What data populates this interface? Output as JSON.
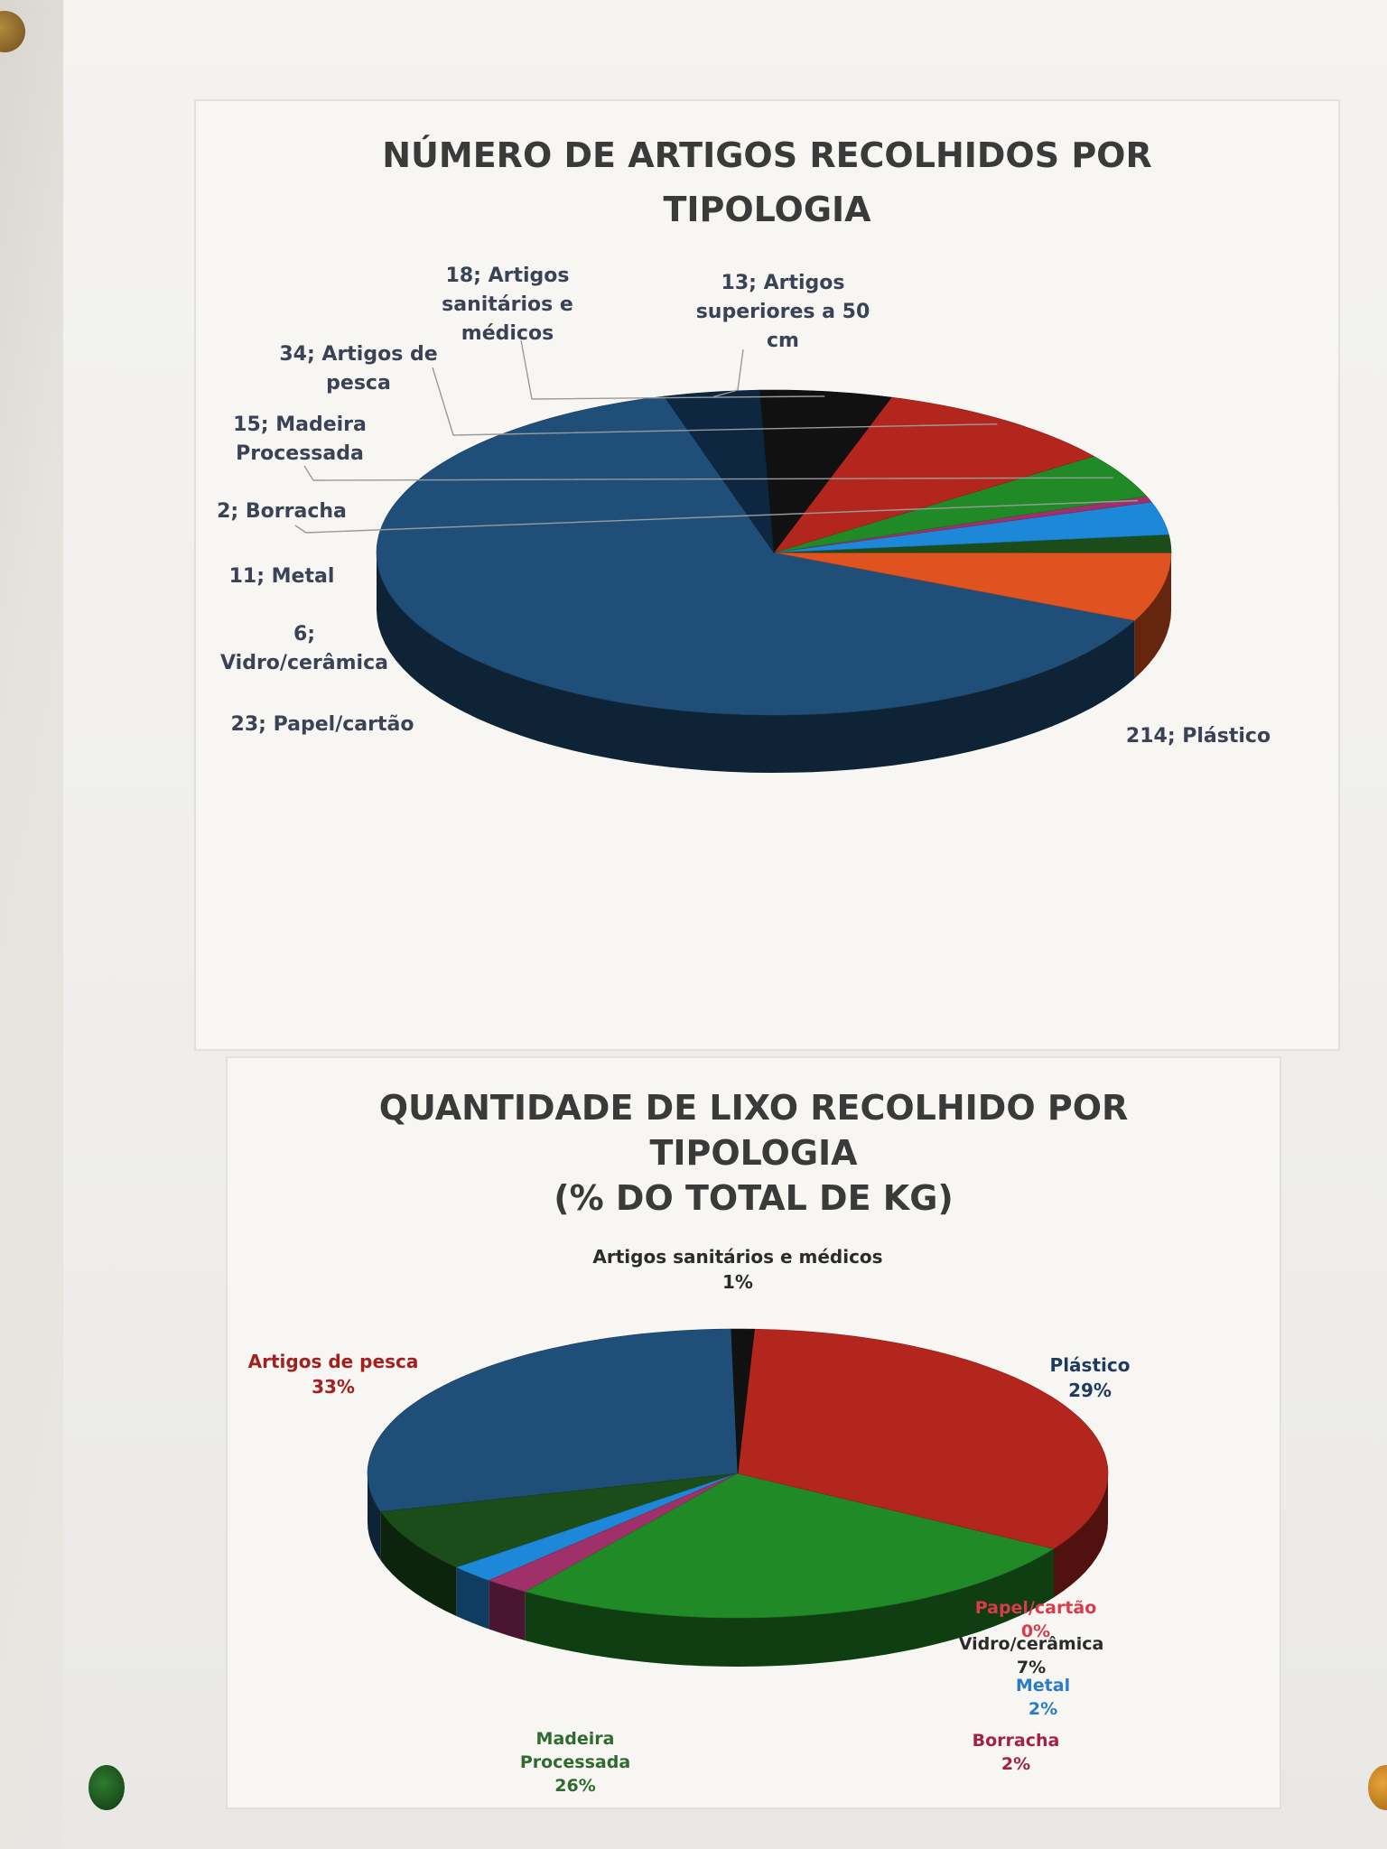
{
  "chart_data": [
    {
      "type": "pie",
      "title": "NÚMERO DE ARTIGOS RECOLHIDOS POR TIPOLOGIA",
      "data_labels": "value; category",
      "slices": [
        {
          "category": "Plástico",
          "value": 214,
          "label": "214; Plástico",
          "color": "#1f4e79"
        },
        {
          "category": "Papel/cartão",
          "value": 23,
          "label": "23; Papel/cartão",
          "color": "#e0521f"
        },
        {
          "category": "Vidro/cerâmica",
          "value": 6,
          "label": "6; Vidro/cerâmica",
          "color": "#1a4d1a"
        },
        {
          "category": "Metal",
          "value": 11,
          "label": "11; Metal",
          "color": "#1e88d8"
        },
        {
          "category": "Borracha",
          "value": 2,
          "label": "2; Borracha",
          "color": "#a0306a"
        },
        {
          "category": "Madeira Processada",
          "value": 15,
          "label": "15; Madeira Processada",
          "color": "#1f8a26"
        },
        {
          "category": "Artigos de pesca",
          "value": 34,
          "label": "34; Artigos de pesca",
          "color": "#b3261e"
        },
        {
          "category": "Artigos sanitários e médicos",
          "value": 18,
          "label": "18; Artigos sanitários e médicos",
          "color": "#111111"
        },
        {
          "category": "Artigos superiores a 50 cm",
          "value": 13,
          "label": "13; Artigos superiores a 50 cm",
          "color": "#0d2740"
        }
      ]
    },
    {
      "type": "pie",
      "title": "QUANTIDADE DE LIXO RECOLHIDO POR TIPOLOGIA (% DO TOTAL DE KG)",
      "data_labels": "category, percent",
      "slices": [
        {
          "category": "Plástico",
          "value": 29,
          "percent": "29%",
          "color": "#1f4e79",
          "label_color": "#1f3a5f"
        },
        {
          "category": "Vidro/cerâmica",
          "value": 7,
          "percent": "7%",
          "color": "#1a4d1a",
          "label_color": "#2b2b2b"
        },
        {
          "category": "Papel/cartão",
          "value": 0,
          "percent": "0%",
          "color": "#e0521f",
          "label_color": "#d93b4a"
        },
        {
          "category": "Metal",
          "value": 2,
          "percent": "2%",
          "color": "#1e88d8",
          "label_color": "#2a7cc7"
        },
        {
          "category": "Borracha",
          "value": 2,
          "percent": "2%",
          "color": "#a0306a",
          "label_color": "#a3204d"
        },
        {
          "category": "Madeira Processada",
          "value": 26,
          "percent": "26%",
          "color": "#1f8a26",
          "label_color": "#2e6b2e"
        },
        {
          "category": "Artigos de pesca",
          "value": 33,
          "percent": "33%",
          "color": "#b3261e",
          "label_color": "#a3201e"
        },
        {
          "category": "Artigos sanitários e médicos",
          "value": 1,
          "percent": "1%",
          "color": "#111111",
          "label_color": "#2b2b2b"
        }
      ]
    }
  ],
  "charts": [
    {
      "title_lines": [
        "NÚMERO DE ARTIGOS RECOLHIDOS POR",
        "TIPOLOGIA"
      ]
    },
    {
      "title_lines": [
        "QUANTIDADE DE LIXO RECOLHIDO POR",
        "TIPOLOGIA",
        "(% DO TOTAL DE KG)"
      ]
    }
  ]
}
